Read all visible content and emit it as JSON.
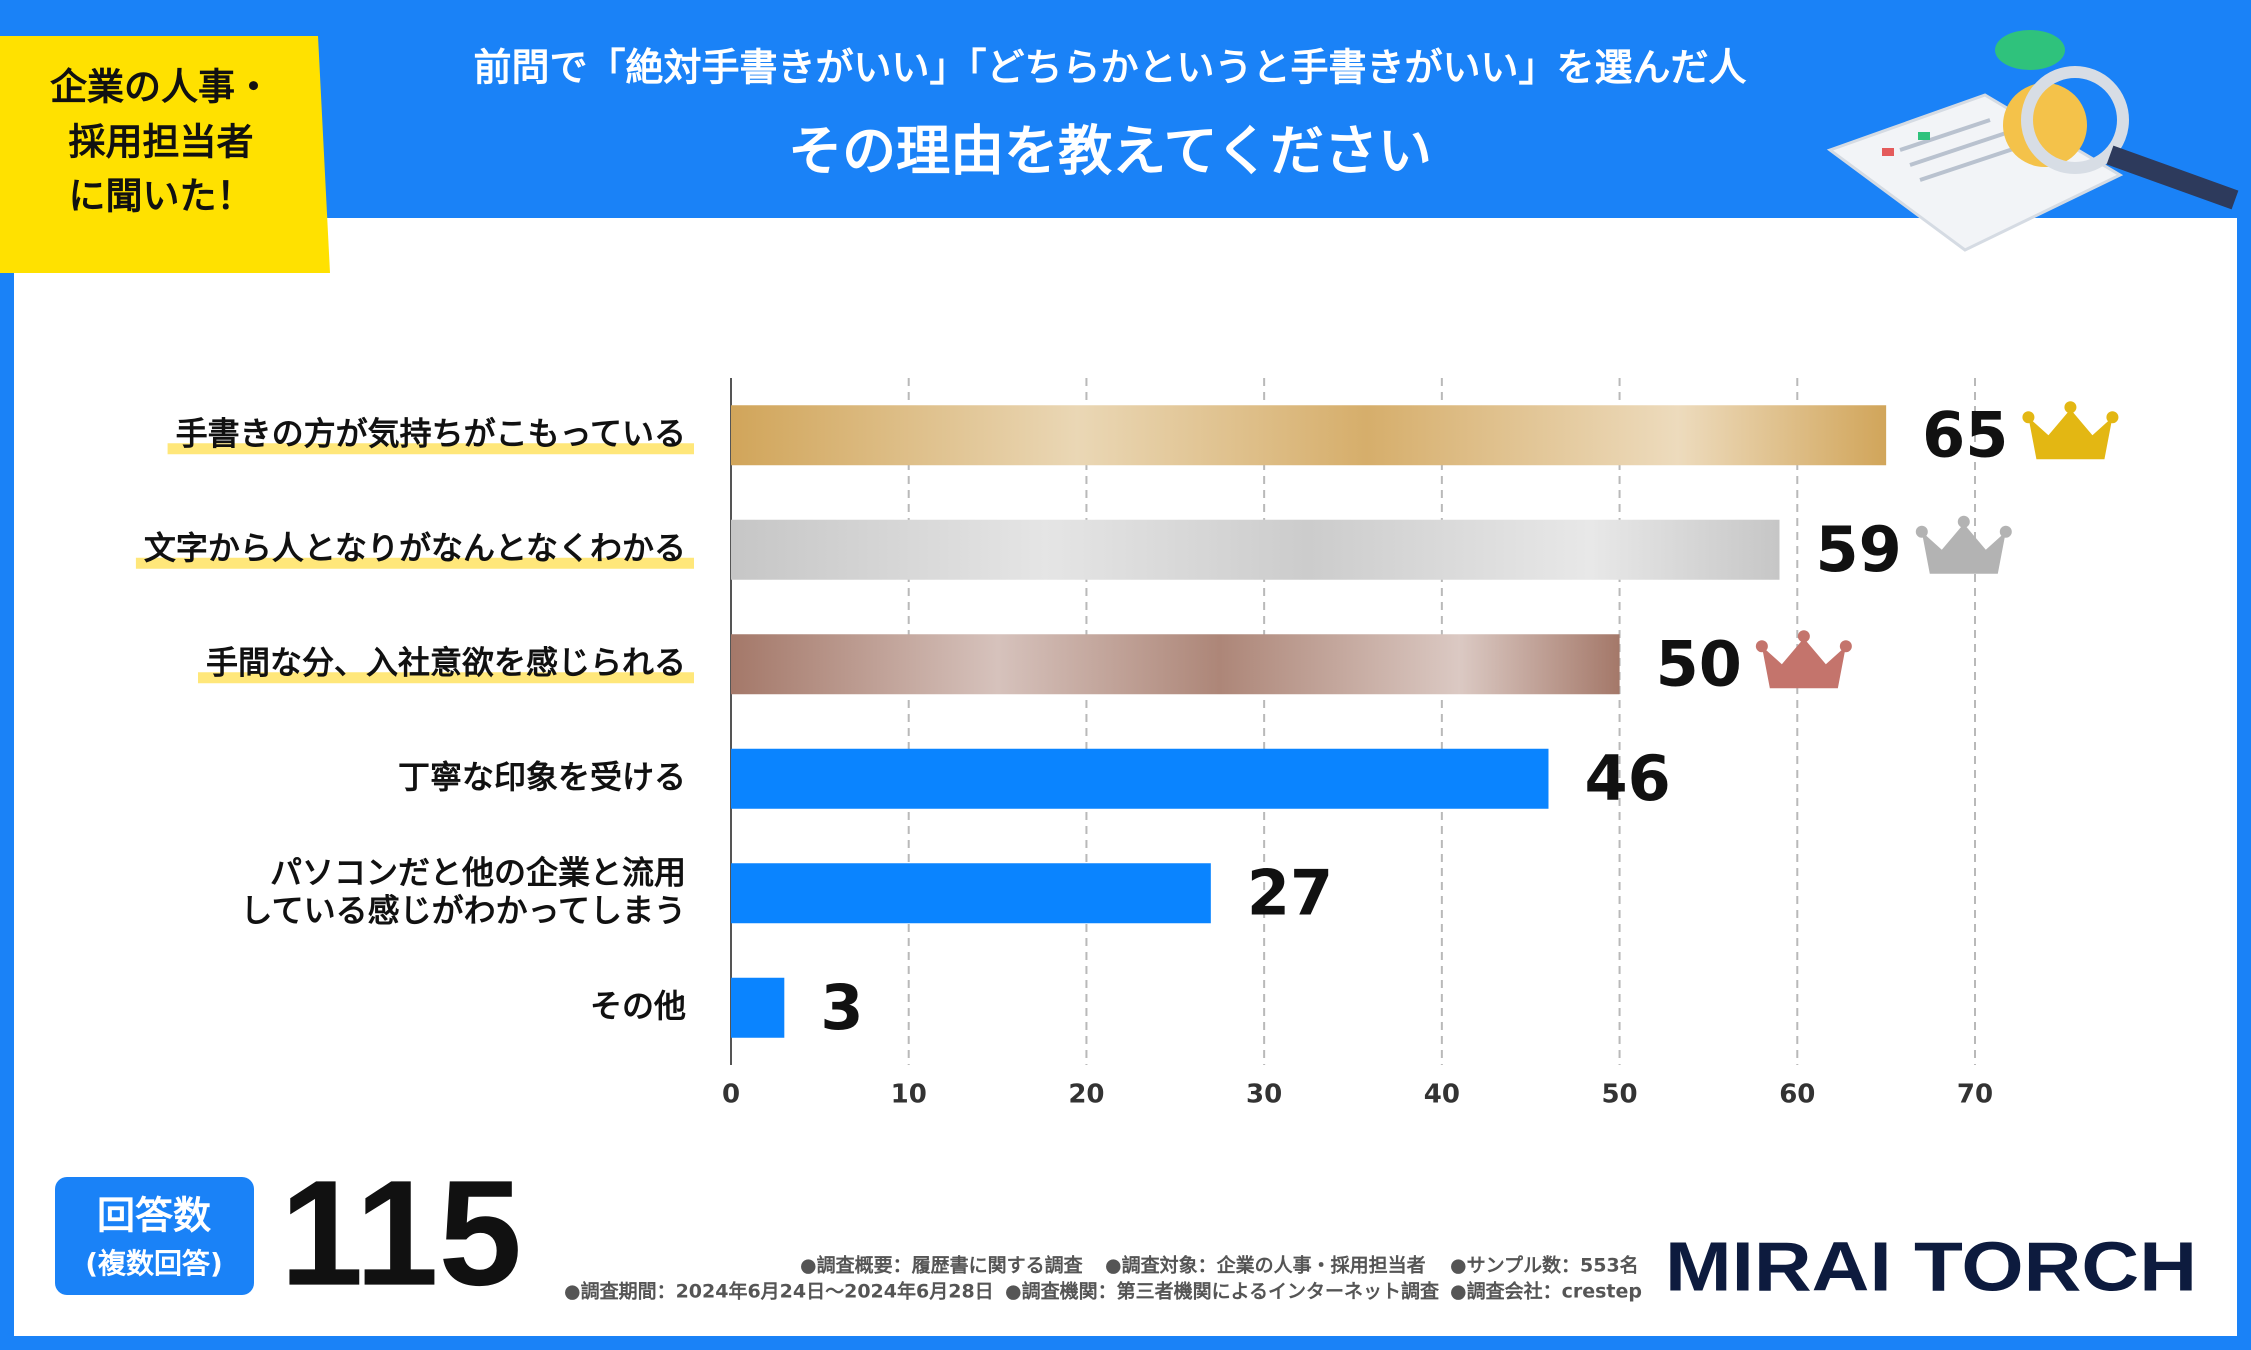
{
  "tag": {
    "lines": [
      "企業の人事・",
      "採用担当者",
      "に聞いた！"
    ]
  },
  "header": {
    "title_lines": [
      "前問で「絶対手書きがいい」「どちらかというと手書きがいい」を選んだ人",
      "その理由を教えてください"
    ]
  },
  "chart_data": {
    "type": "bar",
    "orientation": "horizontal",
    "categories": [
      [
        "手書きの方が気持ちがこもっている"
      ],
      [
        "文字から人となりがなんとなくわかる"
      ],
      [
        "手間な分、入社意欲を感じられる"
      ],
      [
        "丁寧な印象を受ける"
      ],
      [
        "パソコンだと他の企業と流用",
        "している感じがわかってしまう"
      ],
      [
        "その他"
      ]
    ],
    "values": [
      65,
      59,
      50,
      46,
      27,
      3
    ],
    "colors": [
      "#d1a55a",
      "#c6c6c6",
      "#a47869",
      "#0a84ff",
      "#0a84ff",
      "#0a84ff"
    ],
    "crown_colors": [
      "#e3b713",
      "#b3b3b3",
      "#c4746c"
    ],
    "xlim": [
      0,
      70
    ],
    "xticks": [
      0,
      10,
      20,
      30,
      40,
      50,
      60,
      70
    ],
    "grid": true
  },
  "responses": {
    "label_lines": [
      "回答数",
      "(複数回答)"
    ],
    "count": 115
  },
  "footnotes": [
    [
      "●調査概要：履歴書に関する調査",
      "●調査対象：企業の人事・採用担当者",
      "●サンプル数：553名"
    ],
    [
      "●調査期間：2024年6月24日～2024年6月28日",
      "●調査機関：第三者機関によるインターネット調査",
      "●調査会社：crestep"
    ]
  ],
  "logo": "MIRAI TORCH"
}
